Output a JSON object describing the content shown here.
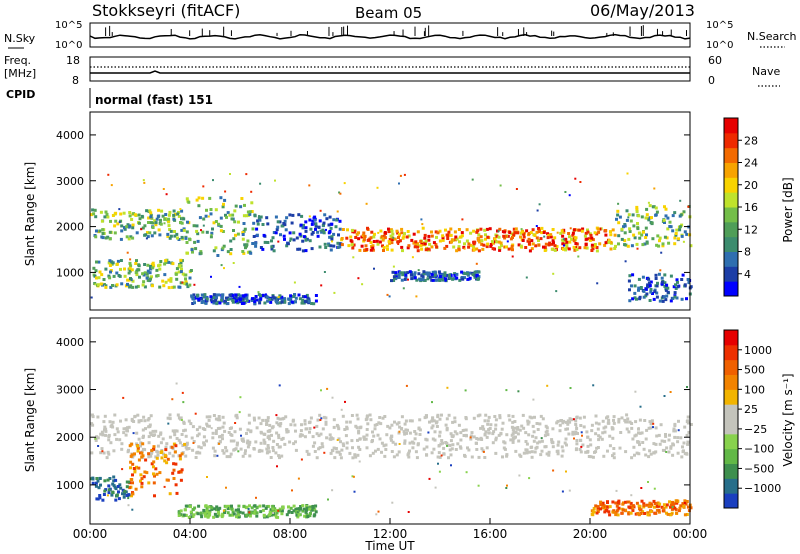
{
  "header": {
    "station": "Stokkseyri (fitACF)",
    "beam": "Beam 05",
    "date": "06/May/2013"
  },
  "top_panels": {
    "nsky_label": "N.Sky",
    "nsky_ticks": [
      "10^5",
      "10^0"
    ],
    "nsearch_label": "N.Search",
    "freq_label": "Freq.",
    "freq_unit": "[MHz]",
    "freq_ticks": [
      "18",
      "8"
    ],
    "nave_ticks": [
      "60",
      "0"
    ],
    "nave_label": "Nave",
    "cpid_label": "CPID",
    "cpid_value": "normal (fast) 151"
  },
  "chart_data": [
    {
      "type": "heatmap",
      "name": "Power",
      "ylabel": "Slant Range [km]",
      "ylim": [
        180,
        4500
      ],
      "yticks": [
        1000,
        2000,
        3000,
        4000
      ],
      "xlim": [
        0,
        24
      ],
      "colorbar": {
        "label": "Power [dB]",
        "ticks": [
          "28",
          "24",
          "20",
          "16",
          "12",
          "8",
          "4"
        ],
        "colors": [
          "#0000ff",
          "#1c3ea6",
          "#2f6fb0",
          "#3c8c6e",
          "#4f9e58",
          "#74be49",
          "#bfe22c",
          "#f8d300",
          "#f7a300",
          "#f36a00",
          "#ee2a00",
          "#e60000"
        ]
      },
      "bands": [
        {
          "t": [
            0,
            3.8
          ],
          "r": [
            1750,
            2400
          ],
          "level": "medium"
        },
        {
          "t": [
            3.8,
            6.5
          ],
          "r": [
            1400,
            2700
          ],
          "level": "medium"
        },
        {
          "t": [
            6.5,
            10
          ],
          "r": [
            1500,
            2300
          ],
          "level": "low"
        },
        {
          "t": [
            10,
            21
          ],
          "r": [
            1500,
            2000
          ],
          "level": "high"
        },
        {
          "t": [
            21,
            24
          ],
          "r": [
            1600,
            2500
          ],
          "level": "medium"
        },
        {
          "t": [
            0,
            4
          ],
          "r": [
            700,
            1300
          ],
          "level": "medium"
        },
        {
          "t": [
            4,
            9
          ],
          "r": [
            350,
            550
          ],
          "level": "low"
        },
        {
          "t": [
            12,
            15.5
          ],
          "r": [
            850,
            1050
          ],
          "level": "low"
        },
        {
          "t": [
            21.5,
            24
          ],
          "r": [
            400,
            1000
          ],
          "level": "low"
        }
      ]
    },
    {
      "type": "heatmap",
      "name": "Velocity",
      "ylabel": "Slant Range [km]",
      "xlabel": "Time UT",
      "ylim": [
        180,
        4500
      ],
      "yticks": [
        1000,
        2000,
        3000,
        4000
      ],
      "xlim": [
        0,
        24
      ],
      "xticks": [
        "00:00",
        "04:00",
        "08:00",
        "12:00",
        "16:00",
        "20:00",
        "00:00"
      ],
      "colorbar": {
        "label": "Velocity [m s⁻¹]",
        "ticks": [
          "1000",
          "500",
          "100",
          "25",
          "−25",
          "−100",
          "−500",
          "−1000"
        ],
        "colors": [
          "#1a3fbf",
          "#276e8a",
          "#3e8f4e",
          "#62b847",
          "#88d24d",
          "#c4c4bc",
          "#c4c4bc",
          "#f2b400",
          "#f28300",
          "#f06000",
          "#ee3000",
          "#e60000"
        ]
      },
      "bands": [
        {
          "t": [
            0,
            24
          ],
          "r": [
            1600,
            2500
          ],
          "level": "gray"
        },
        {
          "t": [
            1.5,
            3.8
          ],
          "r": [
            800,
            1900
          ],
          "level": "orange"
        },
        {
          "t": [
            0,
            1.5
          ],
          "r": [
            700,
            1200
          ],
          "level": "blue"
        },
        {
          "t": [
            3.5,
            9
          ],
          "r": [
            350,
            600
          ],
          "level": "green"
        },
        {
          "t": [
            20,
            24
          ],
          "r": [
            400,
            700
          ],
          "level": "orange"
        }
      ]
    }
  ],
  "colors": {
    "axis": "#000000",
    "gray_scatter": "#c4c4bc"
  }
}
